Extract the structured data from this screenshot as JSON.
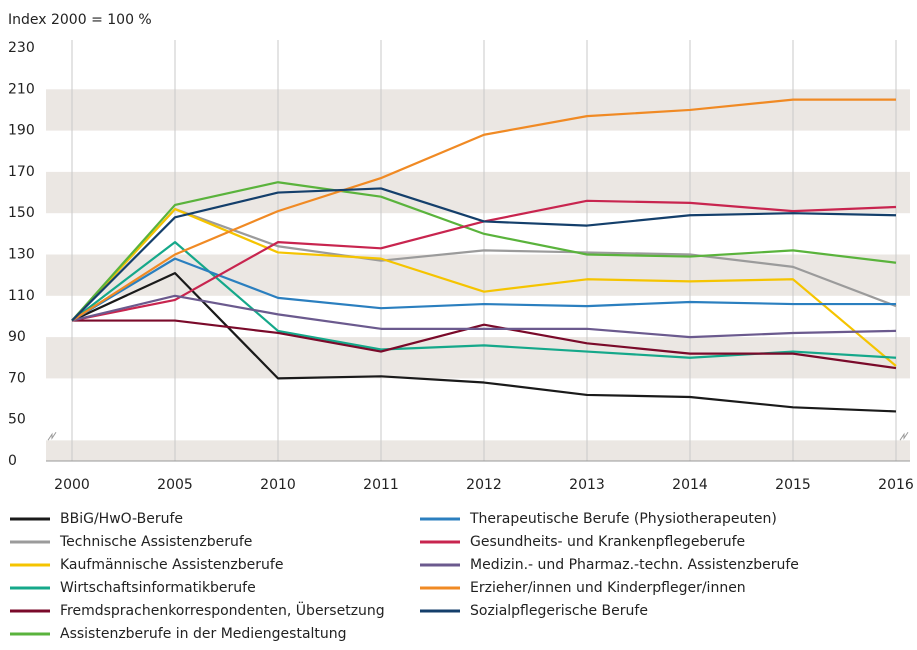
{
  "chart_data": {
    "type": "line",
    "y_axis_label": "Index 2000 = 100 %",
    "categories": [
      "2000",
      "2005",
      "2010",
      "2011",
      "2012",
      "2013",
      "2014",
      "2015",
      "2016"
    ],
    "yticks": [
      0,
      50,
      70,
      90,
      110,
      130,
      150,
      170,
      190,
      210,
      230
    ],
    "ylim": [
      0,
      230
    ],
    "grid": true,
    "series": [
      {
        "name": "BBiG/HwO-Berufe",
        "color": "#1a1a1a",
        "values": [
          98,
          121,
          70,
          71,
          68,
          62,
          61,
          56,
          54
        ]
      },
      {
        "name": "Technische Assistenzberufe",
        "color": "#9b9b9b",
        "values": [
          98,
          152,
          134,
          127,
          132,
          131,
          130,
          124,
          105
        ]
      },
      {
        "name": "Kaufmännische Assistenzberufe",
        "color": "#f5c400",
        "values": [
          98,
          152,
          131,
          128,
          112,
          118,
          117,
          118,
          76
        ]
      },
      {
        "name": "Wirtschaftsinformatikberufe",
        "color": "#15a88a",
        "values": [
          98,
          136,
          93,
          84,
          86,
          83,
          80,
          83,
          80
        ]
      },
      {
        "name": "Fremdsprachenkorrespondenten, Übersetzung",
        "color": "#7a0a2a",
        "values": [
          98,
          98,
          92,
          83,
          96,
          87,
          82,
          82,
          75
        ]
      },
      {
        "name": "Assistenzberufe in der Mediengestaltung",
        "color": "#5ab33c",
        "values": [
          98,
          154,
          165,
          158,
          140,
          130,
          129,
          132,
          126
        ]
      },
      {
        "name": "Therapeutische Berufe (Physiotherapeuten)",
        "color": "#2b7fbf",
        "values": [
          98,
          128,
          109,
          104,
          106,
          105,
          107,
          106,
          106
        ]
      },
      {
        "name": "Gesundheits- und Krankenpflegeberufe",
        "color": "#c8254f",
        "values": [
          98,
          108,
          136,
          133,
          146,
          156,
          155,
          151,
          153
        ]
      },
      {
        "name": "Medizin.- und Pharmaz.-techn. Assistenzberufe",
        "color": "#6b5a8e",
        "values": [
          98,
          110,
          101,
          94,
          94,
          94,
          90,
          92,
          93
        ]
      },
      {
        "name": "Erzieher/innen und Kinderpfleger/innen",
        "color": "#f08a24",
        "values": [
          98,
          130,
          151,
          167,
          188,
          197,
          200,
          205,
          205
        ]
      },
      {
        "name": "Sozialpflegerische Berufe",
        "color": "#143f6b",
        "values": [
          98,
          148,
          160,
          162,
          146,
          144,
          149,
          150,
          149
        ]
      }
    ]
  }
}
